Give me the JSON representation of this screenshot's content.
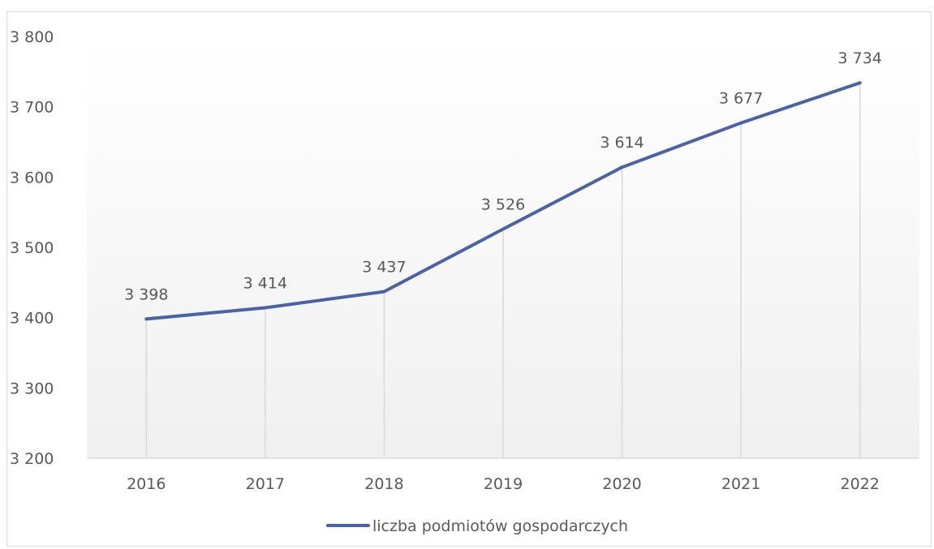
{
  "chart_data": {
    "type": "line",
    "categories": [
      "2016",
      "2017",
      "2018",
      "2019",
      "2020",
      "2021",
      "2022"
    ],
    "series": [
      {
        "name": "liczba podmiotów gospodarczych",
        "values": [
          3398,
          3414,
          3437,
          3526,
          3614,
          3677,
          3734
        ],
        "value_labels": [
          "3 398",
          "3 414",
          "3 437",
          "3 526",
          "3 614",
          "3 677",
          "3 734"
        ],
        "color": "#4a63a8"
      }
    ],
    "y_ticks": [
      3200,
      3300,
      3400,
      3500,
      3600,
      3700,
      3800
    ],
    "y_tick_labels": [
      "3 200",
      "3 300",
      "3 400",
      "3 500",
      "3 600",
      "3 700",
      "3 800"
    ],
    "ylim": [
      3200,
      3800
    ],
    "title": "",
    "xlabel": "",
    "ylabel": "",
    "grid": "vertical drop lines",
    "legend": "bottom-center"
  }
}
